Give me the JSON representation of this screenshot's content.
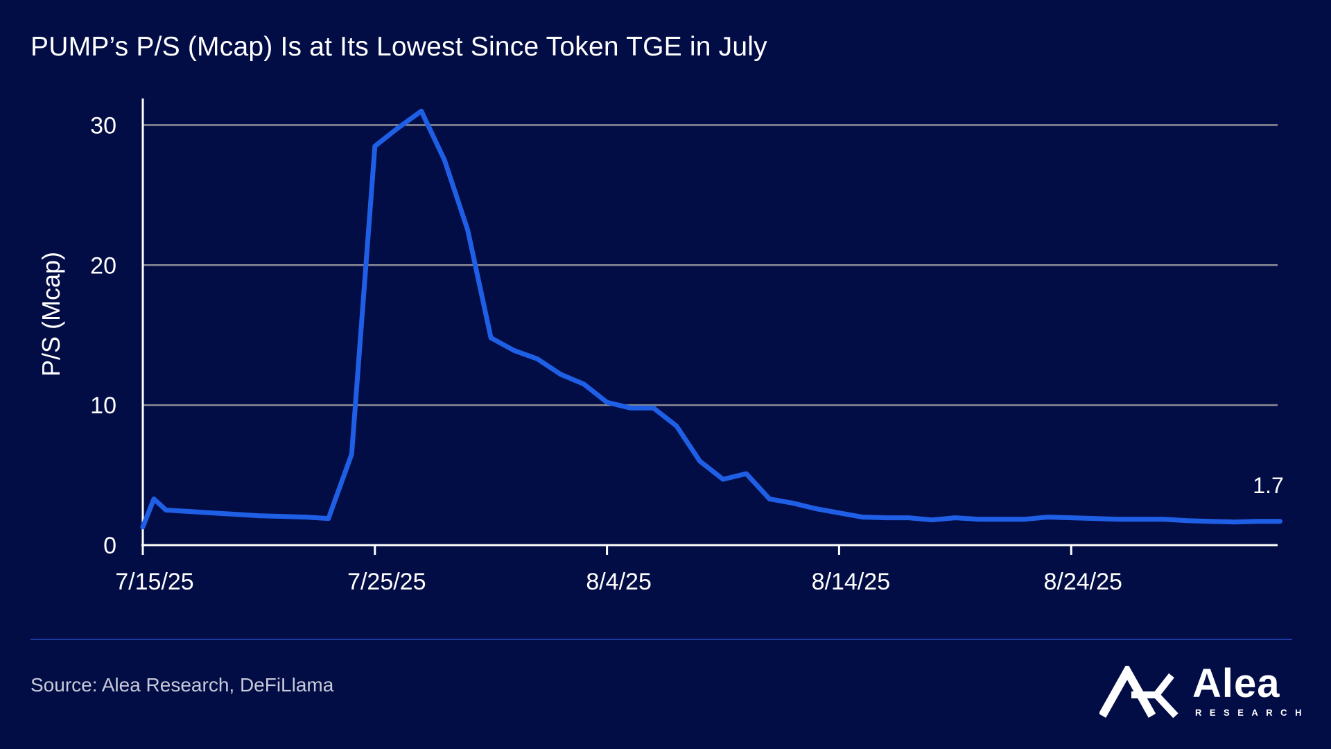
{
  "title": "PUMP’s P/S (Mcap) Is at Its Lowest Since Token TGE in July",
  "source": "Source: Alea Research, DeFiLlama",
  "brand": {
    "name": "Alea",
    "sub": "RESEARCH"
  },
  "colors": {
    "background": "#020c45",
    "line": "#1f5fe6",
    "grid": "#8a8c95",
    "divider": "#1e3aa6"
  },
  "chart_data": {
    "type": "line",
    "title": "PUMP’s P/S (Mcap) Is at Its Lowest Since Token TGE in July",
    "xlabel": "",
    "ylabel": "P/S (Mcap)",
    "ylim": [
      0,
      32
    ],
    "xlim": [
      "7/15/25",
      "9/2/25"
    ],
    "yticks": [
      0,
      10,
      20,
      30
    ],
    "xticks": [
      "7/15/25",
      "7/25/25",
      "8/4/25",
      "8/14/25",
      "8/24/25"
    ],
    "grid": "horizontal",
    "legend": "none",
    "end_label": "1.7",
    "series": [
      {
        "x": [
          "7/15/25",
          "7/15/25",
          "7/16/25",
          "7/17/25",
          "7/18/25",
          "7/19/25",
          "7/20/25",
          "7/21/25",
          "7/22/25",
          "7/23/25",
          "7/24/25",
          "7/25/25",
          "7/26/25",
          "7/27/25",
          "7/28/25",
          "7/29/25",
          "7/30/25",
          "7/31/25",
          "8/1/25",
          "8/2/25",
          "8/3/25",
          "8/4/25",
          "8/5/25",
          "8/6/25",
          "8/7/25",
          "8/8/25",
          "8/9/25",
          "8/10/25",
          "8/11/25",
          "8/12/25",
          "8/13/25",
          "8/14/25",
          "8/15/25",
          "8/16/25",
          "8/17/25",
          "8/18/25",
          "8/19/25",
          "8/20/25",
          "8/21/25",
          "8/22/25",
          "8/23/25",
          "8/24/25",
          "8/25/25",
          "8/26/25",
          "8/27/25",
          "8/28/25",
          "8/29/25",
          "8/30/25",
          "8/31/25",
          "9/1/25",
          "9/2/25"
        ],
        "y": [
          1.3,
          3.3,
          2.5,
          2.4,
          2.3,
          2.2,
          2.1,
          2.05,
          2.0,
          1.9,
          6.5,
          28.5,
          29.8,
          31.0,
          27.5,
          22.5,
          14.8,
          13.9,
          13.3,
          12.2,
          11.5,
          10.2,
          9.8,
          9.8,
          8.5,
          6.0,
          4.7,
          5.1,
          3.3,
          3.0,
          2.6,
          2.3,
          2.0,
          1.95,
          1.95,
          1.8,
          1.95,
          1.85,
          1.85,
          1.85,
          2.0,
          1.95,
          1.9,
          1.85,
          1.85,
          1.85,
          1.75,
          1.7,
          1.65,
          1.7,
          1.7
        ]
      }
    ]
  }
}
